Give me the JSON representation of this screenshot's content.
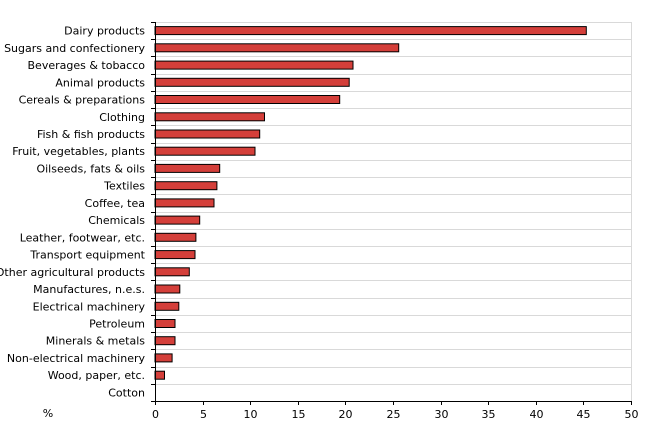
{
  "chart_data": {
    "type": "bar",
    "orientation": "horizontal",
    "title": "",
    "xlabel": "%",
    "ylabel": "",
    "xlim": [
      0,
      50
    ],
    "xticks": [
      0,
      5,
      10,
      15,
      20,
      25,
      30,
      35,
      40,
      45,
      50
    ],
    "grid": "horizontal lines between categories",
    "legend": "none",
    "bar_color": "#d43f3a",
    "bar_edge_color": "#000000",
    "grid_color": "#d9d9d9",
    "categories": [
      "Dairy products",
      "Sugars and confectionery",
      "Beverages & tobacco",
      "Animal products",
      "Cereals & preparations",
      "Clothing",
      "Fish & fish products",
      "Fruit, vegetables, plants",
      "Oilseeds, fats & oils",
      "Textiles",
      "Coffee, tea",
      "Chemicals",
      "Leather, footwear, etc.",
      "Transport equipment",
      "Other agricultural products",
      "Manufactures, n.e.s.",
      "Electrical machinery",
      "Petroleum",
      "Minerals & metals",
      "Non-electrical machinery",
      "Wood, paper, etc.",
      "Cotton"
    ],
    "values": [
      45.3,
      25.6,
      20.8,
      20.4,
      19.4,
      11.5,
      11.0,
      10.5,
      6.8,
      6.5,
      6.2,
      4.7,
      4.3,
      4.2,
      3.6,
      2.6,
      2.5,
      2.1,
      2.1,
      1.8,
      1.0,
      0
    ]
  }
}
